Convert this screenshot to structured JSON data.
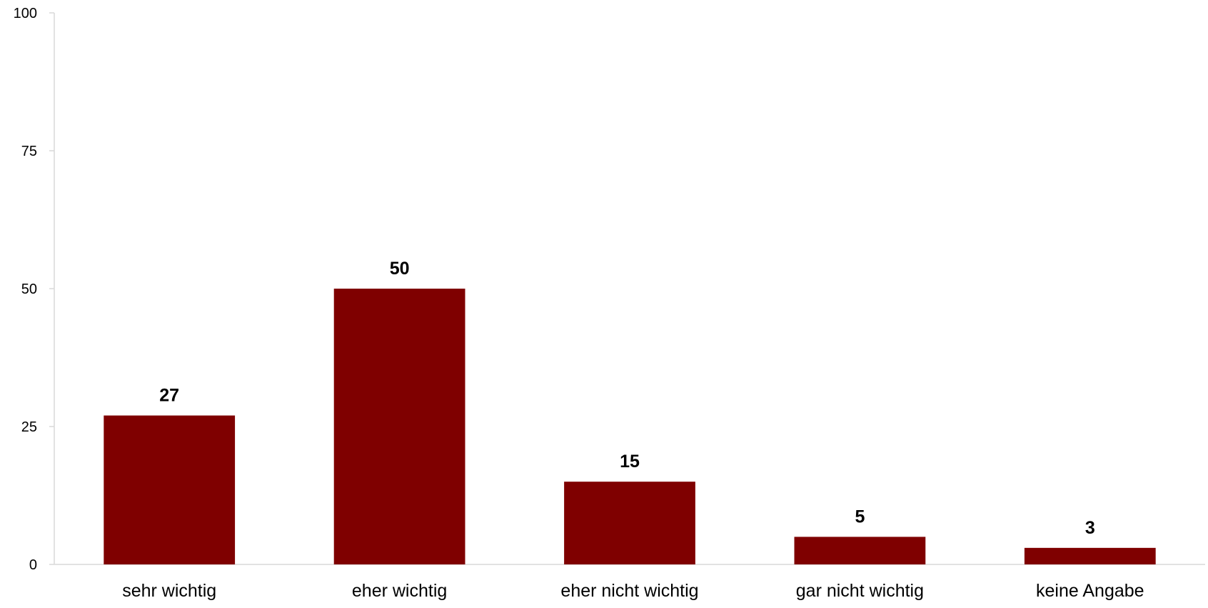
{
  "chart_data": {
    "type": "bar",
    "categories": [
      "sehr wichtig",
      "eher wichtig",
      "eher nicht wichtig",
      "gar nicht wichtig",
      "keine Angabe"
    ],
    "values": [
      27,
      50,
      15,
      5,
      3
    ],
    "data_labels": [
      "27",
      "50",
      "15",
      "5",
      "3"
    ],
    "ylim": [
      0,
      100
    ],
    "yticks": [
      0,
      25,
      50,
      75,
      100
    ],
    "ytick_labels": [
      "0",
      "25",
      "50",
      "75",
      "100"
    ],
    "grid": false,
    "legend": "none",
    "bar_color": "#7f0000",
    "axis_color": "#d9d9d9"
  }
}
